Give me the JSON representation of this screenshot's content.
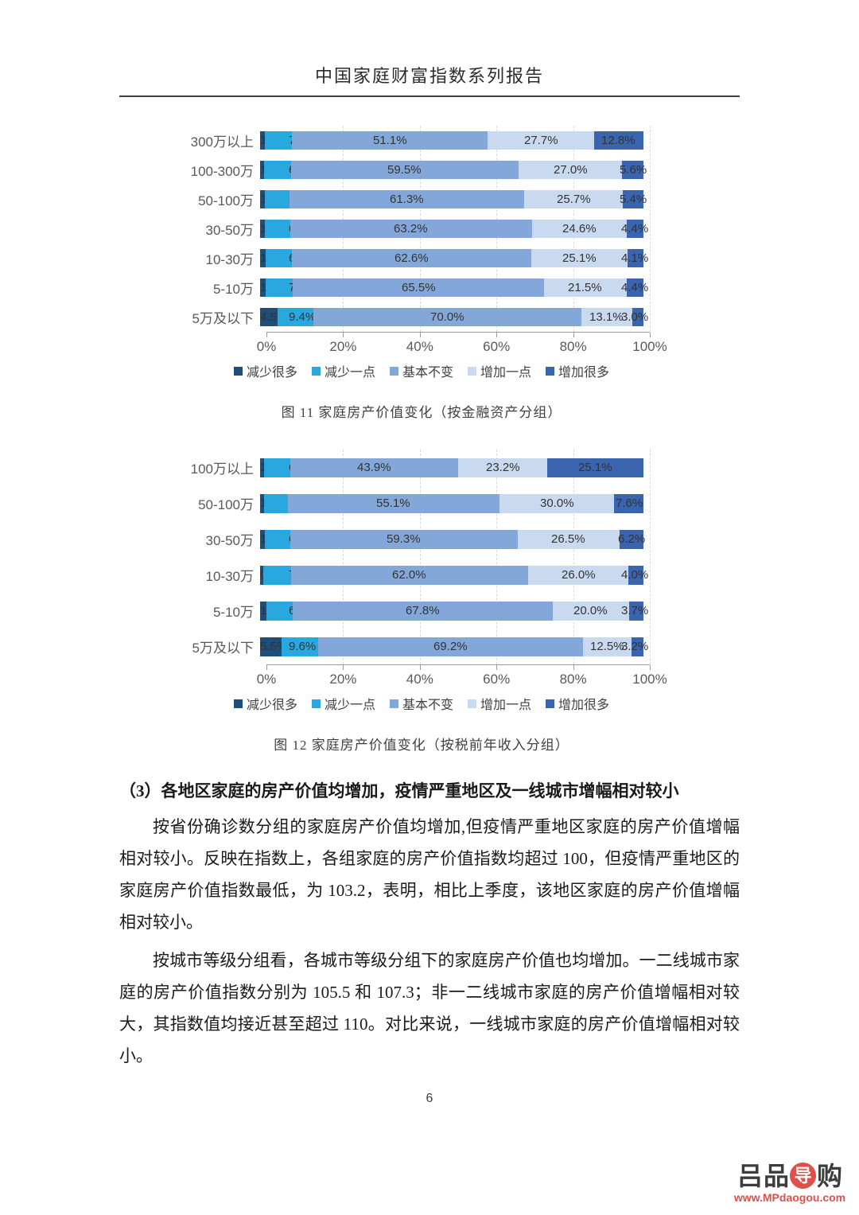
{
  "page": {
    "title": "中国家庭财富指数系列报告",
    "page_number": "6"
  },
  "chart_data": [
    {
      "type": "bar",
      "stacked": true,
      "orientation": "horizontal",
      "title": "图  11 家庭房产价值变化（按金融资产分组）",
      "categories": [
        "300万以上",
        "100-300万",
        "50-100万",
        "30-50万",
        "10-30万",
        "5-10万",
        "5万及以下"
      ],
      "series": [
        {
          "name": "减少很多",
          "color": "#1F4E79",
          "values": [
            1.2,
            1.1,
            1.2,
            1.2,
            1.5,
            1.4,
            4.5
          ]
        },
        {
          "name": "减少一点",
          "color": "#29A8E0",
          "values": [
            7.1,
            6.9,
            6.4,
            6.6,
            6.7,
            7.2,
            9.4
          ]
        },
        {
          "name": "基本不变",
          "color": "#84A7D9",
          "values": [
            51.1,
            59.5,
            61.3,
            63.2,
            62.6,
            65.5,
            70.0
          ]
        },
        {
          "name": "增加一点",
          "color": "#C9DAF0",
          "values": [
            27.7,
            27.0,
            25.7,
            24.6,
            25.1,
            21.5,
            13.1
          ]
        },
        {
          "name": "增加很多",
          "color": "#3A64AE",
          "values": [
            12.8,
            5.6,
            5.4,
            4.4,
            4.1,
            4.4,
            3.0
          ]
        }
      ],
      "x_ticks": [
        "0%",
        "20%",
        "40%",
        "60%",
        "80%",
        "100%"
      ],
      "xlim": [
        0,
        100
      ],
      "grid": true,
      "legend_position": "bottom",
      "value_label_suffix": "%"
    },
    {
      "type": "bar",
      "stacked": true,
      "orientation": "horizontal",
      "title": "图  12 家庭房产价值变化（按税前年收入分组）",
      "categories": [
        "100万以上",
        "50-100万",
        "30-50万",
        "10-30万",
        "5-10万",
        "5万及以下"
      ],
      "series": [
        {
          "name": "减少很多",
          "color": "#1F4E79",
          "values": [
            1.0,
            1.1,
            1.2,
            0.9,
            1.7,
            5.5
          ]
        },
        {
          "name": "减少一点",
          "color": "#29A8E0",
          "values": [
            6.8,
            6.2,
            6.7,
            7.1,
            6.8,
            9.6
          ]
        },
        {
          "name": "基本不变",
          "color": "#84A7D9",
          "values": [
            43.9,
            55.1,
            59.3,
            62.0,
            67.8,
            69.2
          ]
        },
        {
          "name": "增加一点",
          "color": "#C9DAF0",
          "values": [
            23.2,
            30.0,
            26.5,
            26.0,
            20.0,
            12.5
          ]
        },
        {
          "name": "增加很多",
          "color": "#3A64AE",
          "values": [
            25.1,
            7.6,
            6.2,
            4.0,
            3.7,
            3.2
          ]
        }
      ],
      "x_ticks": [
        "0%",
        "20%",
        "40%",
        "60%",
        "80%",
        "100%"
      ],
      "xlim": [
        0,
        100
      ],
      "grid": true,
      "legend_position": "bottom",
      "value_label_suffix": "%"
    }
  ],
  "section": {
    "heading": "（3）各地区家庭的房产价值均增加，疫情严重地区及一线城市增幅相对较小",
    "paragraph1": "按省份确诊数分组的家庭房产价值均增加,但疫情严重地区家庭的房产价值增幅相对较小。反映在指数上，各组家庭的房产价值指数均超过 100，但疫情严重地区的家庭房产价值指数最低，为 103.2，表明，相比上季度，该地区家庭的房产价值增幅相对较小。",
    "paragraph2": "按城市等级分组看，各城市等级分组下的家庭房产价值也均增加。一二线城市家庭的房产价值指数分别为 105.5 和 107.3；非一二线城市家庭的房产价值增幅相对较大，其指数值均接近甚至超过 110。对比来说，一线城市家庭的房产价值增幅相对较小。"
  },
  "logo": {
    "char1": "吕",
    "char2": "品",
    "circle_char": "导",
    "char3": "购",
    "url": "www.MPdaogou.com",
    "accent_color": "#E0504B",
    "text_color": "#3D3D3D"
  }
}
